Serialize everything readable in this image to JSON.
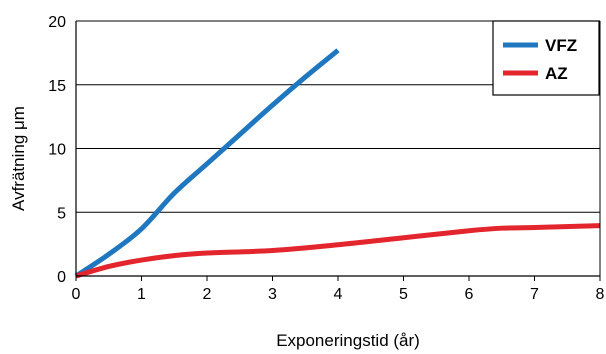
{
  "chart_data": {
    "type": "line",
    "title": "",
    "xlabel": "Exponeringstid (år)",
    "ylabel": "Avfrätning μm",
    "xlim": [
      0,
      8
    ],
    "ylim": [
      0,
      20
    ],
    "x_ticks": [
      "0",
      "1",
      "2",
      "3",
      "4",
      "5",
      "6",
      "7",
      "8"
    ],
    "y_ticks": [
      "0",
      "5",
      "10",
      "15",
      "20"
    ],
    "grid": "horizontal",
    "legend_position": "top-right",
    "series": [
      {
        "name": "VFZ",
        "color": "#1f77c0",
        "x": [
          0,
          0.5,
          1.0,
          1.5,
          2.0,
          2.5,
          3.0,
          3.5,
          4.0
        ],
        "y": [
          0,
          1.7,
          3.7,
          6.5,
          8.8,
          11.1,
          13.4,
          15.6,
          17.7
        ]
      },
      {
        "name": "AZ",
        "color": "#e3262d",
        "x": [
          0,
          0.5,
          1.0,
          1.5,
          2.0,
          3.0,
          4.0,
          5.0,
          6.0,
          6.5,
          7.0,
          8.0
        ],
        "y": [
          0,
          0.75,
          1.25,
          1.6,
          1.8,
          2.0,
          2.45,
          3.0,
          3.55,
          3.75,
          3.8,
          3.95
        ]
      }
    ]
  }
}
